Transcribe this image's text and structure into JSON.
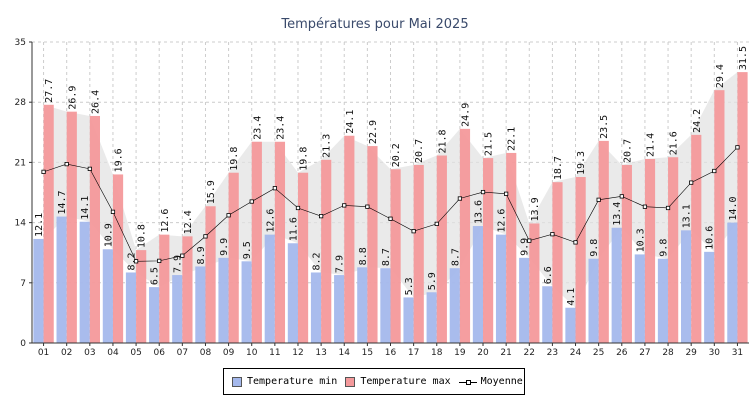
{
  "chart_data": {
    "type": "bar",
    "title": "Températures pour Mai 2025",
    "categories": [
      "01",
      "02",
      "03",
      "04",
      "05",
      "06",
      "07",
      "08",
      "09",
      "10",
      "11",
      "12",
      "13",
      "14",
      "15",
      "16",
      "17",
      "18",
      "19",
      "20",
      "21",
      "22",
      "23",
      "24",
      "25",
      "26",
      "27",
      "28",
      "29",
      "30",
      "31"
    ],
    "series": [
      {
        "name": "Temperature min",
        "type": "bar",
        "color": "#a4b8ec",
        "values": [
          12.1,
          14.7,
          14.1,
          10.9,
          8.2,
          6.5,
          7.9,
          8.9,
          9.9,
          9.5,
          12.6,
          11.6,
          8.2,
          7.9,
          8.8,
          8.7,
          5.3,
          5.9,
          8.7,
          13.6,
          12.6,
          9.9,
          6.6,
          4.1,
          9.8,
          13.4,
          10.3,
          9.8,
          13.1,
          10.6,
          14.0
        ]
      },
      {
        "name": "Temperature max",
        "type": "bar",
        "color": "#f4999b",
        "values": [
          27.7,
          26.9,
          26.4,
          19.6,
          10.8,
          12.6,
          12.4,
          15.9,
          19.8,
          23.4,
          23.4,
          19.8,
          21.3,
          24.1,
          22.9,
          20.2,
          20.7,
          21.8,
          24.9,
          21.5,
          22.1,
          13.9,
          18.7,
          19.3,
          23.5,
          20.7,
          21.4,
          21.6,
          24.2,
          29.4,
          31.5
        ]
      },
      {
        "name": "Moyenne",
        "type": "line",
        "color": "#000000"
      }
    ],
    "ylim": [
      0,
      35
    ],
    "yticks": [
      0,
      7,
      14,
      21,
      28,
      35
    ],
    "grid": true,
    "legend_position": "bottom-center"
  }
}
